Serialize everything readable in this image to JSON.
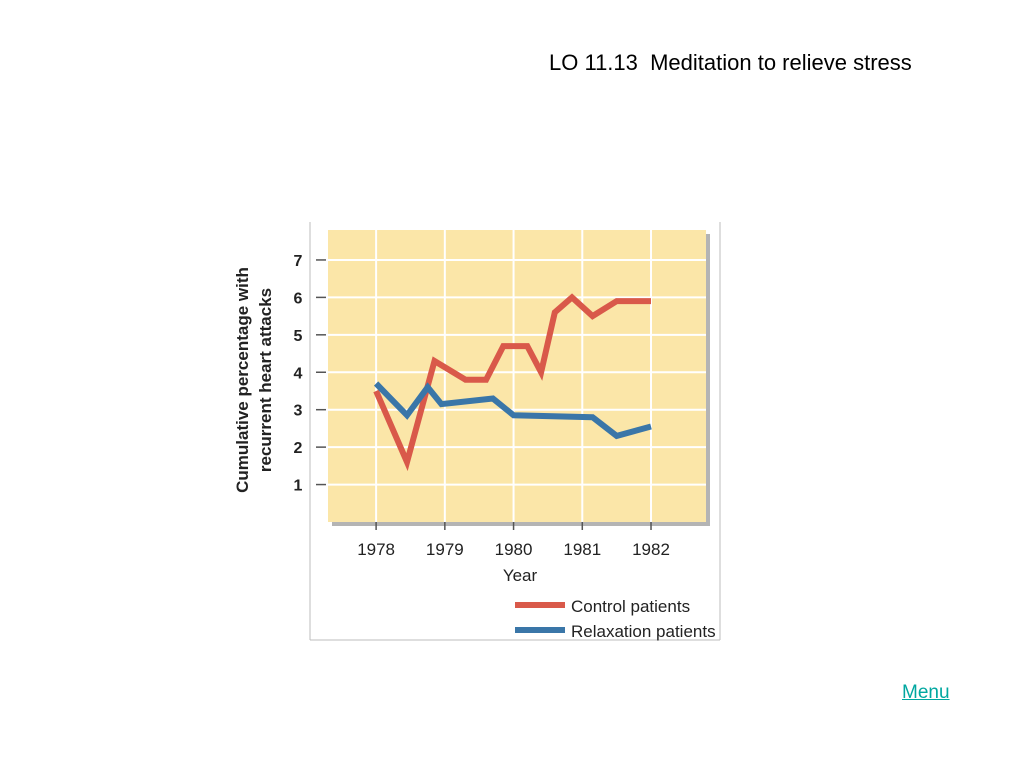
{
  "slide": {
    "title": "LO 11.13  Meditation to relieve stress",
    "menu_label": "Menu"
  },
  "colors": {
    "plot_background": "#fbe6a8",
    "grid": "#ffffff",
    "control_line": "#d9594a",
    "relaxation_line": "#3a76a8"
  },
  "chart_data": {
    "type": "line",
    "title": "",
    "xlabel": "Year",
    "ylabel_lines": [
      "Cumulative percentage with",
      "recurrent heart attacks"
    ],
    "x_ticks": [
      "1978",
      "1979",
      "1980",
      "1981",
      "1982"
    ],
    "y_ticks": [
      1,
      2,
      3,
      4,
      5,
      6,
      7
    ],
    "xlim": [
      1977.3,
      1982.8
    ],
    "ylim": [
      0,
      7.8
    ],
    "grid": true,
    "legend_position": "bottom-right",
    "series": [
      {
        "name": "Control patients",
        "color": "#d9594a",
        "x": [
          1978.0,
          1978.45,
          1978.85,
          1979.3,
          1979.6,
          1979.85,
          1980.2,
          1980.4,
          1980.6,
          1980.85,
          1981.15,
          1981.5,
          1982.0
        ],
        "y": [
          3.5,
          1.6,
          4.3,
          3.8,
          3.8,
          4.7,
          4.7,
          4.0,
          5.6,
          6.0,
          5.5,
          5.9,
          5.9
        ]
      },
      {
        "name": "Relaxation patients",
        "color": "#3a76a8",
        "x": [
          1978.0,
          1978.45,
          1978.75,
          1978.95,
          1979.7,
          1980.0,
          1981.15,
          1981.5,
          1982.0
        ],
        "y": [
          3.7,
          2.85,
          3.6,
          3.15,
          3.3,
          2.85,
          2.8,
          2.3,
          2.55
        ]
      }
    ]
  }
}
